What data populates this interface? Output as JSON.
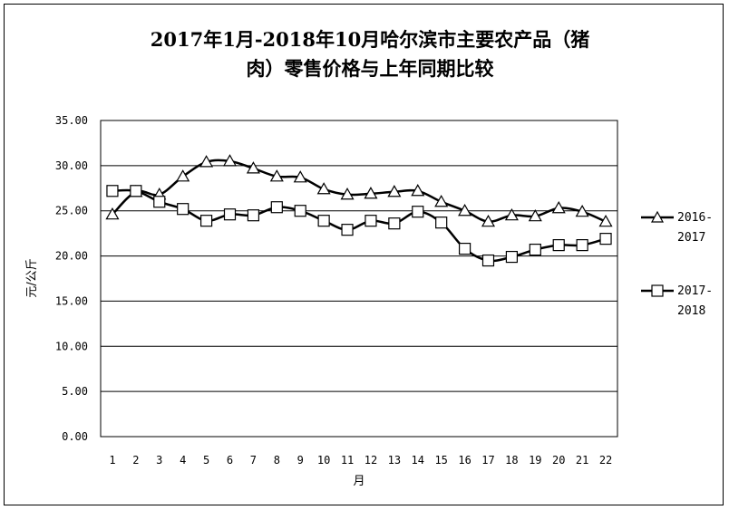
{
  "chart_data": {
    "type": "line",
    "title_lines": [
      "2017年1月-2018年10月哈尔滨市主要农产品（猪",
      "肉）零售价格与上年同期比较"
    ],
    "xlabel": "月",
    "ylabel": "元/公斤",
    "x": [
      1,
      2,
      3,
      4,
      5,
      6,
      7,
      8,
      9,
      10,
      11,
      12,
      13,
      14,
      15,
      16,
      17,
      18,
      19,
      20,
      21,
      22
    ],
    "ylim": [
      0,
      35
    ],
    "yticks": [
      "0.00",
      "5.00",
      "10.00",
      "15.00",
      "20.00",
      "25.00",
      "30.00",
      "35.00"
    ],
    "grid": true,
    "legend_position": "right",
    "series": [
      {
        "name_lines": [
          "2016-",
          "2017"
        ],
        "marker": "triangle",
        "values": [
          24.6,
          27.1,
          26.8,
          28.8,
          30.4,
          30.5,
          29.7,
          28.8,
          28.7,
          27.4,
          26.8,
          26.9,
          27.1,
          27.2,
          26.0,
          25.0,
          23.8,
          24.5,
          24.4,
          25.3,
          24.9,
          23.8
        ]
      },
      {
        "name_lines": [
          "2017-",
          "2018"
        ],
        "marker": "square",
        "values": [
          27.2,
          27.2,
          26.0,
          25.2,
          23.9,
          24.6,
          24.5,
          25.4,
          25.0,
          23.9,
          22.9,
          23.9,
          23.6,
          24.9,
          23.7,
          20.8,
          19.5,
          19.9,
          20.7,
          21.2,
          21.2,
          21.9
        ]
      }
    ],
    "colors": {
      "line": "#000000",
      "marker_fill": "#ffffff",
      "grid": "#000000",
      "background": "#ffffff"
    }
  }
}
